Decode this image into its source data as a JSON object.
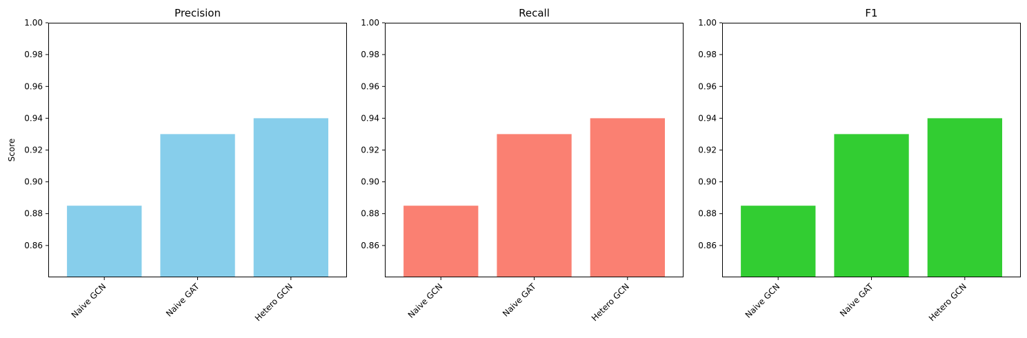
{
  "chart_data": [
    {
      "type": "bar",
      "title": "Precision",
      "ylabel": "Score",
      "xlabel": "",
      "categories": [
        "Naive GCN",
        "Naive GAT",
        "Hetero GCN"
      ],
      "values": [
        0.885,
        0.93,
        0.94
      ],
      "ylim": [
        0.84,
        1.0
      ],
      "yticks": [
        "0.86",
        "0.88",
        "0.90",
        "0.92",
        "0.94",
        "0.96",
        "0.98",
        "1.00"
      ],
      "color": "#87ceeb",
      "grid": false
    },
    {
      "type": "bar",
      "title": "Recall",
      "ylabel": "",
      "xlabel": "",
      "categories": [
        "Naive GCN",
        "Naive GAT",
        "Hetero GCN"
      ],
      "values": [
        0.885,
        0.93,
        0.94
      ],
      "ylim": [
        0.84,
        1.0
      ],
      "yticks": [
        "0.86",
        "0.88",
        "0.90",
        "0.92",
        "0.94",
        "0.96",
        "0.98",
        "1.00"
      ],
      "color": "#fa8072",
      "grid": false
    },
    {
      "type": "bar",
      "title": "F1",
      "ylabel": "",
      "xlabel": "",
      "categories": [
        "Naive GCN",
        "Naive GAT",
        "Hetero GCN"
      ],
      "values": [
        0.885,
        0.93,
        0.94
      ],
      "ylim": [
        0.84,
        1.0
      ],
      "yticks": [
        "0.86",
        "0.88",
        "0.90",
        "0.92",
        "0.94",
        "0.96",
        "0.98",
        "1.00"
      ],
      "color": "#32cd32",
      "grid": false
    }
  ]
}
